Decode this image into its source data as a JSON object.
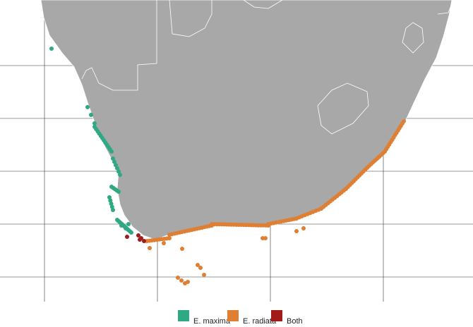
{
  "legend": {
    "items": [
      {
        "label": "E. maxima",
        "color": "#2fa884"
      },
      {
        "label": "E. radiata",
        "color": "#df7f33"
      },
      {
        "label": "Both",
        "color": "#a21b1b"
      }
    ]
  }
}
